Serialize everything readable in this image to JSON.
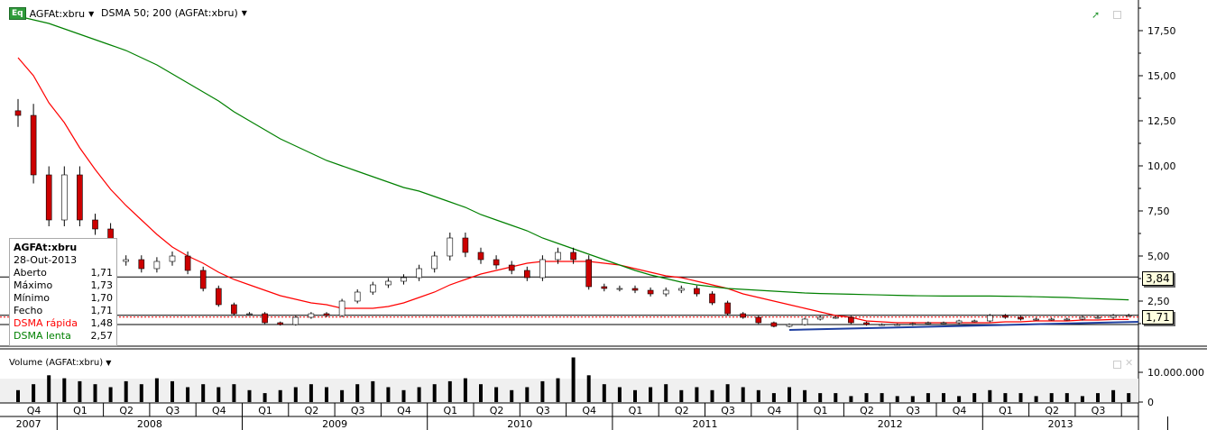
{
  "header": {
    "badge": "Eq",
    "symbol": "AGFAt:xbru",
    "indicator": "DSMA 50; 200 (AGFAt:xbru)"
  },
  "tooltip": {
    "title": "AGFAt:xbru",
    "date": "28-Out-2013",
    "rows": [
      {
        "label": "Aberto",
        "value": "1,71"
      },
      {
        "label": "Máximo",
        "value": "1,73"
      },
      {
        "label": "Mínimo",
        "value": "1,70"
      },
      {
        "label": "Fecho",
        "value": "1,71"
      },
      {
        "label": "DSMA rápida",
        "value": "1,48"
      },
      {
        "label": "DSMA lenta",
        "value": "2,57"
      }
    ]
  },
  "tags": {
    "level": "3,84",
    "last": "1,71"
  },
  "volume_label": "Volume (AGFAt:xbru)",
  "colors": {
    "fast": "#ff0000",
    "slow": "#008000",
    "up": "#ffffff",
    "down": "#cc0000",
    "trend": "#2040a0"
  },
  "chart_data": [
    {
      "type": "candlestick",
      "ylim": [
        0,
        19
      ],
      "yticks": [
        "17,50",
        "15,00",
        "12,50",
        "10,00",
        "7,50",
        "5,00",
        "2,50"
      ],
      "ytick_values": [
        17.5,
        15,
        12.5,
        10,
        7.5,
        5,
        2.5
      ],
      "x_start": "2007-10",
      "frequency": "monthly",
      "close": [
        12.8,
        9.5,
        7.0,
        9.5,
        7.0,
        6.5,
        4.7,
        4.8,
        4.3,
        4.7,
        5.0,
        4.2,
        3.2,
        2.3,
        1.8,
        1.8,
        1.3,
        1.2,
        1.6,
        1.8,
        1.7,
        2.5,
        3.0,
        3.4,
        3.6,
        3.8,
        4.3,
        5.0,
        6.0,
        5.2,
        4.8,
        4.5,
        4.2,
        3.8,
        4.8,
        5.2,
        4.8,
        3.3,
        3.2,
        3.2,
        3.1,
        2.9,
        3.1,
        3.2,
        2.9,
        2.4,
        1.8,
        1.6,
        1.3,
        1.1,
        1.2,
        1.5,
        1.6,
        1.6,
        1.3,
        1.2,
        1.2,
        1.2,
        1.25,
        1.3,
        1.3,
        1.4,
        1.4,
        1.7,
        1.6,
        1.5,
        1.5,
        1.5,
        1.5,
        1.6,
        1.6,
        1.7,
        1.71
      ],
      "series": [
        {
          "name": "DSMA rápida",
          "values": [
            16.0,
            15.0,
            13.5,
            12.4,
            11.0,
            9.8,
            8.7,
            7.8,
            7.0,
            6.2,
            5.5,
            5.0,
            4.6,
            4.1,
            3.7,
            3.4,
            3.1,
            2.8,
            2.6,
            2.4,
            2.3,
            2.1,
            2.1,
            2.1,
            2.2,
            2.4,
            2.7,
            3.0,
            3.4,
            3.7,
            4.0,
            4.2,
            4.4,
            4.6,
            4.7,
            4.7,
            4.7,
            4.7,
            4.6,
            4.5,
            4.3,
            4.1,
            3.9,
            3.8,
            3.6,
            3.4,
            3.2,
            2.9,
            2.7,
            2.5,
            2.3,
            2.1,
            1.9,
            1.7,
            1.6,
            1.4,
            1.35,
            1.3,
            1.3,
            1.3,
            1.3,
            1.3,
            1.3,
            1.3,
            1.35,
            1.35,
            1.4,
            1.4,
            1.4,
            1.45,
            1.45,
            1.48,
            1.48
          ]
        },
        {
          "name": "DSMA lenta",
          "values": [
            18.3,
            18.1,
            17.9,
            17.6,
            17.3,
            17.0,
            16.7,
            16.4,
            16.0,
            15.6,
            15.1,
            14.6,
            14.1,
            13.6,
            13.0,
            12.5,
            12.0,
            11.5,
            11.1,
            10.7,
            10.3,
            10.0,
            9.7,
            9.4,
            9.1,
            8.8,
            8.6,
            8.3,
            8.0,
            7.7,
            7.3,
            7.0,
            6.7,
            6.4,
            6.0,
            5.7,
            5.4,
            5.1,
            4.8,
            4.5,
            4.2,
            3.95,
            3.75,
            3.55,
            3.4,
            3.3,
            3.2,
            3.15,
            3.1,
            3.05,
            3.0,
            2.95,
            2.92,
            2.9,
            2.88,
            2.86,
            2.84,
            2.82,
            2.8,
            2.79,
            2.78,
            2.78,
            2.78,
            2.78,
            2.77,
            2.76,
            2.74,
            2.72,
            2.7,
            2.66,
            2.63,
            2.6,
            2.57
          ]
        }
      ],
      "horizontal_lines": [
        3.84,
        1.71,
        1.2
      ]
    },
    {
      "type": "bar",
      "name": "Volume (AGFAt:xbru)",
      "yticks": [
        "10.000.000",
        "0"
      ],
      "ytick_values": [
        10000000,
        0
      ],
      "values": [
        4,
        6,
        9,
        8,
        7,
        6,
        5,
        7,
        6,
        8,
        7,
        5,
        6,
        5,
        6,
        4,
        3,
        4,
        5,
        6,
        5,
        4,
        6,
        7,
        5,
        4,
        5,
        6,
        7,
        8,
        6,
        5,
        4,
        5,
        7,
        8,
        15,
        9,
        6,
        5,
        4,
        5,
        6,
        4,
        5,
        4,
        6,
        5,
        4,
        3,
        5,
        4,
        3,
        3,
        2,
        3,
        3,
        2,
        2,
        3,
        3,
        2,
        3,
        4,
        3,
        3,
        2,
        3,
        3,
        2,
        3,
        4,
        3
      ]
    }
  ],
  "time_axis": {
    "quarters": [
      "Q4",
      "Q1",
      "Q2",
      "Q3",
      "Q4",
      "Q1",
      "Q2",
      "Q3",
      "Q4",
      "Q1",
      "Q2",
      "Q3",
      "Q4",
      "Q1",
      "Q2",
      "Q3",
      "Q4",
      "Q1",
      "Q2",
      "Q3",
      "Q4",
      "Q1",
      "Q2",
      "Q3"
    ],
    "years": [
      "2007",
      "2008",
      "2009",
      "2010",
      "2011",
      "2012",
      "2013"
    ]
  }
}
